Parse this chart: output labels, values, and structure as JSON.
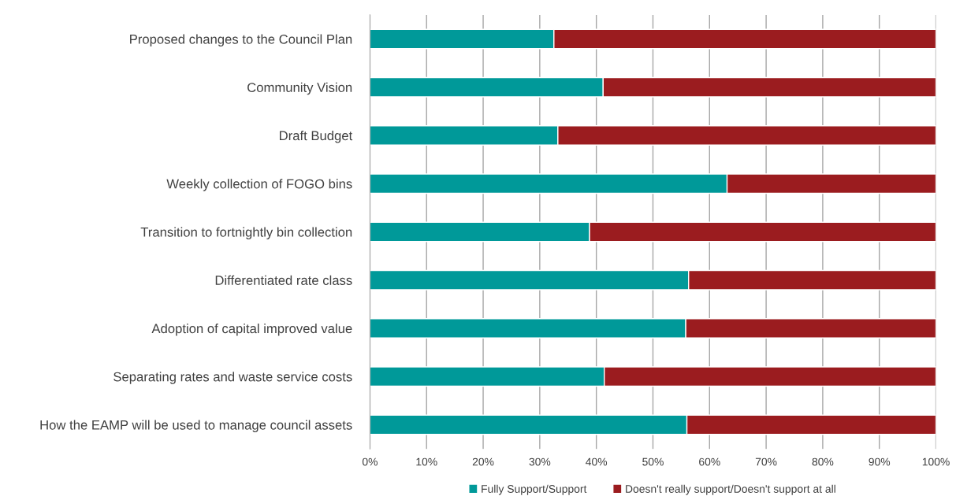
{
  "chart_data": {
    "type": "bar",
    "orientation": "horizontal",
    "stacked": true,
    "categories": [
      "Proposed changes to the Council Plan",
      "Community Vision",
      "Draft Budget",
      "Weekly collection of FOGO bins",
      "Transition to fortnightly bin collection",
      "Differentiated rate class",
      "Adoption of capital improved value",
      "Separating rates and waste service costs",
      "How the EAMP will be used to manage council assets"
    ],
    "series": [
      {
        "name": "Fully Support/Support",
        "color": "#009999",
        "values": [
          32.5,
          41.2,
          33.2,
          63.1,
          38.8,
          56.3,
          55.8,
          41.4,
          56.0
        ]
      },
      {
        "name": "Doesn't really support/Doesn't support at all",
        "color": "#9b1c1f",
        "values": [
          67.5,
          58.8,
          66.8,
          36.9,
          61.2,
          43.7,
          44.2,
          58.6,
          44.0
        ]
      }
    ],
    "xlim": [
      0,
      100
    ],
    "xticks": [
      {
        "value": 0,
        "label": "0%"
      },
      {
        "value": 10,
        "label": "10%"
      },
      {
        "value": 20,
        "label": "20%"
      },
      {
        "value": 30,
        "label": "30%"
      },
      {
        "value": 40,
        "label": "40%"
      },
      {
        "value": 50,
        "label": "50%"
      },
      {
        "value": 60,
        "label": "60%"
      },
      {
        "value": 70,
        "label": "70%"
      },
      {
        "value": 80,
        "label": "80%"
      },
      {
        "value": 90,
        "label": "90%"
      },
      {
        "value": 100,
        "label": "100%"
      }
    ],
    "grid": "x",
    "legend": "bottom"
  }
}
